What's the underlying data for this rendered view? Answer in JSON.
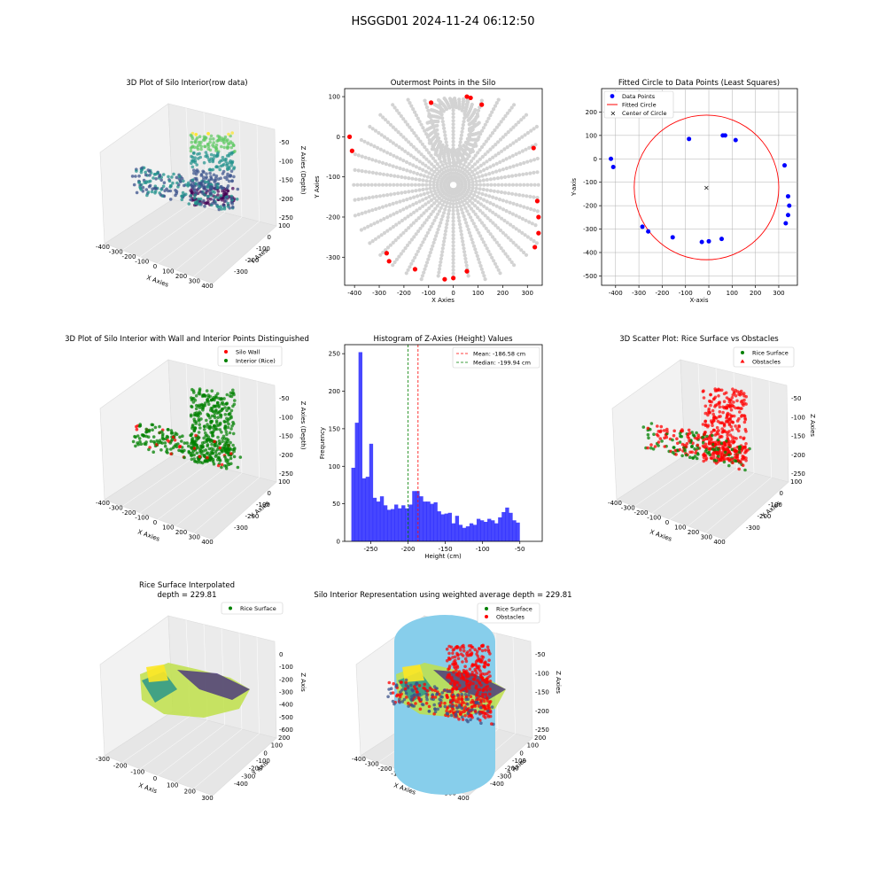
{
  "suptitle": "HSGGD01 2024-11-24 06:12:50",
  "chart_data": [
    {
      "type": "scatter3d",
      "title": "3D Plot of Silo Interior(row data)",
      "xlabel": "X Axies",
      "ylabel": "Y Axes",
      "zlabel": "Z Axies (Depth)",
      "x_ticks": [
        "-400",
        "-300",
        "-200",
        "-100",
        "0",
        "100",
        "200",
        "300",
        "400"
      ],
      "y_ticks": [
        "100",
        "0",
        "-100",
        "-200",
        "-300"
      ],
      "z_ticks": [
        "-50",
        "-100",
        "-150",
        "-200",
        "-250"
      ],
      "colormap": "viridis"
    },
    {
      "type": "scatter",
      "title": "Outermost Points in the Silo",
      "xlabel": "X Axies",
      "ylabel": "Y Axies",
      "xlim": [
        -440,
        360
      ],
      "ylim": [
        -370,
        120
      ],
      "x_ticks": [
        -400,
        -300,
        -200,
        -100,
        0,
        100,
        200,
        300
      ],
      "y_ticks": [
        100,
        0,
        -100,
        -200,
        -300
      ],
      "interior_color": "#d3d3d3",
      "outer_color": "#ff0000",
      "outer_points": [
        {
          "x": -420,
          "y": 0
        },
        {
          "x": -410,
          "y": -35
        },
        {
          "x": -270,
          "y": -290
        },
        {
          "x": -260,
          "y": -310
        },
        {
          "x": -155,
          "y": -330
        },
        {
          "x": -90,
          "y": 85
        },
        {
          "x": -35,
          "y": -355
        },
        {
          "x": 0,
          "y": -352
        },
        {
          "x": 55,
          "y": -335
        },
        {
          "x": 55,
          "y": 100
        },
        {
          "x": 70,
          "y": 97
        },
        {
          "x": 115,
          "y": 80
        },
        {
          "x": 325,
          "y": -28
        },
        {
          "x": 330,
          "y": -275
        },
        {
          "x": 340,
          "y": -160
        },
        {
          "x": 345,
          "y": -200
        },
        {
          "x": 345,
          "y": -240
        }
      ]
    },
    {
      "type": "scatter",
      "title": "Fitted Circle to Data Points (Least Squares)",
      "xlabel": "X-axis",
      "ylabel": "Y-axis",
      "xlim": [
        -460,
        380
      ],
      "ylim": [
        -540,
        300
      ],
      "x_ticks": [
        -400,
        -300,
        -200,
        -100,
        0,
        100,
        200,
        300
      ],
      "y_ticks": [
        200,
        100,
        0,
        -100,
        -200,
        -300,
        -400,
        -500
      ],
      "grid": true,
      "legend": [
        "Data Points",
        "Fitted Circle",
        "Center of Circle"
      ],
      "legend_position": "upper-left",
      "circle": {
        "cx": -10,
        "cy": -122,
        "r": 310
      },
      "points": [
        {
          "x": -420,
          "y": 0
        },
        {
          "x": -410,
          "y": -35
        },
        {
          "x": -285,
          "y": -290
        },
        {
          "x": -260,
          "y": -310
        },
        {
          "x": -155,
          "y": -335
        },
        {
          "x": -85,
          "y": 85
        },
        {
          "x": -30,
          "y": -355
        },
        {
          "x": 0,
          "y": -352
        },
        {
          "x": 55,
          "y": -342
        },
        {
          "x": 60,
          "y": 100
        },
        {
          "x": 70,
          "y": 100
        },
        {
          "x": 115,
          "y": 80
        },
        {
          "x": 325,
          "y": -28
        },
        {
          "x": 330,
          "y": -275
        },
        {
          "x": 340,
          "y": -160
        },
        {
          "x": 345,
          "y": -200
        },
        {
          "x": 340,
          "y": -240
        }
      ],
      "colors": {
        "points": "#0000ff",
        "circle": "#ff0000",
        "center": "#008000"
      }
    },
    {
      "type": "scatter3d",
      "title": "3D Plot of Silo Interior with Wall and Interior Points Distinguished",
      "xlabel": "X Axies",
      "ylabel": "Y Axies",
      "zlabel": "Z Axies (Depth)",
      "x_ticks": [
        "-400",
        "-300",
        "-200",
        "-100",
        "0",
        "100",
        "200",
        "300",
        "400"
      ],
      "y_ticks": [
        "100",
        "0",
        "-100",
        "-200",
        "-300"
      ],
      "z_ticks": [
        "-50",
        "-100",
        "-150",
        "-200",
        "-250"
      ],
      "legend": [
        "Silo Wall",
        "Interior (Rice)"
      ],
      "colors": {
        "wall": "#ff0000",
        "interior": "#008000"
      }
    },
    {
      "type": "bar",
      "title": "Histogram of Z-Axies (Height) Values",
      "xlabel": "Height (cm)",
      "ylabel": "Frequency",
      "xlim": [
        -285,
        -20
      ],
      "ylim": [
        0,
        262
      ],
      "x_ticks": [
        -250,
        -200,
        -150,
        -100,
        -50
      ],
      "y_ticks": [
        0,
        50,
        100,
        150,
        200,
        250
      ],
      "bin_start": -276,
      "bin_width": 4.8,
      "values": [
        98,
        158,
        252,
        84,
        86,
        130,
        58,
        53,
        60,
        48,
        42,
        43,
        49,
        44,
        48,
        44,
        49,
        67,
        67,
        60,
        53,
        53,
        50,
        52,
        40,
        36,
        37,
        38,
        24,
        34,
        22,
        18,
        20,
        24,
        22,
        30,
        28,
        26,
        30,
        28,
        24,
        32,
        39,
        45,
        38,
        28,
        25
      ],
      "mean": -186.58,
      "median": -199.94,
      "legend": [
        "Mean: -186.58 cm",
        "Median: -199.94 cm"
      ],
      "colors": {
        "bars": "#0000ff",
        "mean": "#ff0000",
        "median": "#008000"
      }
    },
    {
      "type": "scatter3d",
      "title": "3D Scatter Plot: Rice Surface vs Obstacles",
      "xlabel": "X Axies",
      "ylabel": "Y Axies",
      "zlabel": "Z Axies",
      "x_ticks": [
        "-400",
        "-300",
        "-200",
        "-100",
        "0",
        "100",
        "200",
        "300",
        "400"
      ],
      "y_ticks": [
        "100",
        "0",
        "-100",
        "-200",
        "-300"
      ],
      "z_ticks": [
        "-50",
        "-100",
        "-150",
        "-200",
        "-250"
      ],
      "legend": [
        "Rice Surface",
        "Obstacles"
      ]
    },
    {
      "type": "surface3d",
      "title": "Rice Surface Interpolated",
      "subtitle": "depth = 229.81",
      "xlabel": "X Axis",
      "ylabel": "Y Axis",
      "zlabel": "Z Axis",
      "x_ticks": [
        "-300",
        "-200",
        "-100",
        "0",
        "100",
        "200",
        "300"
      ],
      "y_ticks": [
        "200",
        "100",
        "0",
        "-100",
        "-200",
        "-300",
        "-400"
      ],
      "z_ticks": [
        "0",
        "-100",
        "-200",
        "-300",
        "-400",
        "-500",
        "-600"
      ],
      "legend": [
        "Rice Surface"
      ]
    },
    {
      "type": "surface3d",
      "title": "Silo Interior Representation using weighted average depth = 229.81",
      "xlabel": "X Axies",
      "ylabel": "Y Axies",
      "zlabel": "Z Axies",
      "x_ticks": [
        "-400",
        "-300",
        "-200",
        "-100",
        "0",
        "100",
        "200",
        "300",
        "400"
      ],
      "y_ticks": [
        "200",
        "100",
        "0",
        "-100",
        "-200",
        "-300",
        "-400"
      ],
      "z_ticks": [
        "-50",
        "-100",
        "-150",
        "-200",
        "-250"
      ],
      "legend": [
        "Rice Surface",
        "Obstacles"
      ],
      "colors": {
        "cylinder": "#87ceeb"
      }
    }
  ]
}
